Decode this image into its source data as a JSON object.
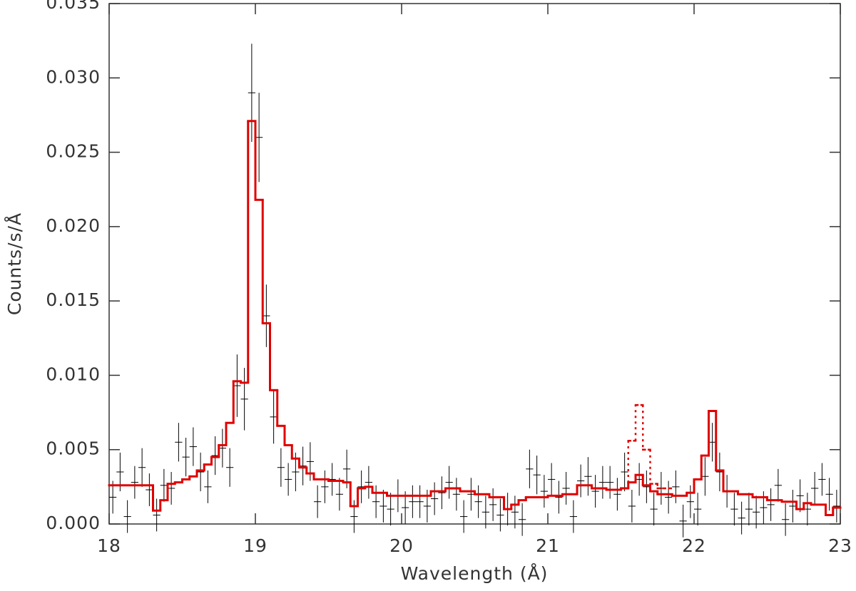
{
  "chart_data": {
    "type": "scatter",
    "xlabel": "Wavelength (Å)",
    "ylabel": "Counts/s/Å",
    "xlim": [
      18,
      23
    ],
    "ylim": [
      0,
      0.035
    ],
    "xticks": [
      18,
      19,
      20,
      21,
      22,
      23
    ],
    "yticks": [
      {
        "value": 0,
        "label": "0.000"
      },
      {
        "value": 0.005,
        "label": "0.005"
      },
      {
        "value": 0.01,
        "label": "0.010"
      },
      {
        "value": 0.015,
        "label": "0.015"
      },
      {
        "value": 0.02,
        "label": "0.020"
      },
      {
        "value": 0.025,
        "label": "0.025"
      },
      {
        "value": 0.03,
        "label": "0.030"
      },
      {
        "value": 0.035,
        "label": "0.035"
      }
    ],
    "series": [
      {
        "type": "errorbar",
        "color": "#000000",
        "xerr": 0.025,
        "x": [
          18.025,
          18.075,
          18.125,
          18.175,
          18.225,
          18.275,
          18.325,
          18.375,
          18.425,
          18.475,
          18.525,
          18.575,
          18.625,
          18.675,
          18.725,
          18.775,
          18.825,
          18.875,
          18.925,
          18.975,
          19.025,
          19.075,
          19.125,
          19.175,
          19.225,
          19.275,
          19.325,
          19.375,
          19.425,
          19.475,
          19.525,
          19.575,
          19.625,
          19.675,
          19.725,
          19.775,
          19.825,
          19.875,
          19.925,
          19.975,
          20.025,
          20.075,
          20.125,
          20.175,
          20.225,
          20.275,
          20.325,
          20.375,
          20.425,
          20.475,
          20.525,
          20.575,
          20.625,
          20.675,
          20.725,
          20.775,
          20.825,
          20.875,
          20.925,
          20.975,
          21.025,
          21.075,
          21.125,
          21.175,
          21.225,
          21.275,
          21.325,
          21.375,
          21.425,
          21.475,
          21.525,
          21.575,
          21.625,
          21.675,
          21.725,
          21.775,
          21.825,
          21.875,
          21.925,
          21.975,
          22.025,
          22.075,
          22.125,
          22.175,
          22.225,
          22.275,
          22.325,
          22.375,
          22.425,
          22.475,
          22.525,
          22.575,
          22.625,
          22.675,
          22.725,
          22.775,
          22.825,
          22.875,
          22.925,
          22.975
        ],
        "values": [
          0.0018,
          0.0035,
          0.0005,
          0.0028,
          0.0038,
          0.0023,
          0.0006,
          0.0026,
          0.0024,
          0.0055,
          0.0045,
          0.0052,
          0.0035,
          0.0025,
          0.0046,
          0.0051,
          0.0038,
          0.0093,
          0.0084,
          0.029,
          0.026,
          0.014,
          0.0072,
          0.0038,
          0.003,
          0.0035,
          0.0039,
          0.0042,
          0.0015,
          0.0025,
          0.003,
          0.002,
          0.0037,
          0.0005,
          0.0025,
          0.0028,
          0.0015,
          0.0012,
          0.001,
          0.0019,
          0.0011,
          0.0015,
          0.0015,
          0.0012,
          0.0017,
          0.0021,
          0.0028,
          0.002,
          0.0005,
          0.002,
          0.0015,
          0.0008,
          0.0013,
          0.0006,
          0.001,
          0.0008,
          0.0003,
          0.0037,
          0.0033,
          0.0022,
          0.003,
          0.0018,
          0.0024,
          0.0005,
          0.0029,
          0.0032,
          0.0022,
          0.0028,
          0.0028,
          0.002,
          0.0035,
          0.0012,
          0.003,
          0.0025,
          0.001,
          0.0024,
          0.0018,
          0.0025,
          0.0002,
          0.0015,
          0.001,
          0.0032,
          0.0055,
          0.0035,
          0.0022,
          0.001,
          0.0004,
          0.001,
          0.0008,
          0.0011,
          0.0013,
          0.0026,
          0.0003,
          0.0012,
          0.0019,
          0.001,
          0.0024,
          0.003,
          0.002,
          0.0012
        ],
        "yerr": [
          0.0011,
          0.0013,
          0.0011,
          0.0011,
          0.0013,
          0.0011,
          0.0011,
          0.0011,
          0.0011,
          0.0013,
          0.0013,
          0.0013,
          0.0013,
          0.0011,
          0.0013,
          0.0013,
          0.0013,
          0.0021,
          0.0021,
          0.0033,
          0.003,
          0.0021,
          0.0018,
          0.0013,
          0.0011,
          0.0013,
          0.0013,
          0.0013,
          0.0011,
          0.0011,
          0.0011,
          0.0011,
          0.0013,
          0.0011,
          0.0011,
          0.0011,
          0.0011,
          0.0011,
          0.0011,
          0.0011,
          0.0011,
          0.0011,
          0.0011,
          0.0011,
          0.0011,
          0.0011,
          0.0011,
          0.0011,
          0.0011,
          0.0011,
          0.0011,
          0.0011,
          0.0011,
          0.0011,
          0.0011,
          0.0011,
          0.0011,
          0.0013,
          0.0013,
          0.0011,
          0.0011,
          0.0011,
          0.0011,
          0.0011,
          0.0011,
          0.0013,
          0.0011,
          0.0011,
          0.0011,
          0.0011,
          0.0013,
          0.0011,
          0.0011,
          0.0011,
          0.0011,
          0.0011,
          0.0011,
          0.0011,
          0.0011,
          0.0011,
          0.0011,
          0.0013,
          0.0013,
          0.0013,
          0.0011,
          0.0011,
          0.0011,
          0.0011,
          0.0011,
          0.0011,
          0.0011,
          0.0011,
          0.0011,
          0.0011,
          0.0011,
          0.0011,
          0.0011,
          0.0011,
          0.0011,
          0.0011
        ]
      },
      {
        "type": "step",
        "color": "#e00000",
        "bins": [
          18,
          18.3,
          18.35,
          18.4,
          18.45,
          18.5,
          18.55,
          18.6,
          18.65,
          18.7,
          18.75,
          18.8,
          18.85,
          18.9,
          18.95,
          19,
          19.05,
          19.1,
          19.15,
          19.2,
          19.25,
          19.3,
          19.35,
          19.4,
          19.5,
          19.6,
          19.65,
          19.7,
          19.75,
          19.8,
          19.9,
          20.2,
          20.3,
          20.4,
          20.5,
          20.6,
          20.7,
          20.75,
          20.8,
          20.85,
          21,
          21.1,
          21.2,
          21.3,
          21.4,
          21.5,
          21.55,
          21.6,
          21.65,
          21.7,
          21.75,
          21.85,
          21.95,
          22,
          22.05,
          22.1,
          22.15,
          22.2,
          22.3,
          22.4,
          22.5,
          22.6,
          22.7,
          22.75,
          22.8,
          22.9,
          22.95,
          23
        ],
        "values": [
          0.0026,
          0.0009,
          0.0016,
          0.0027,
          0.0028,
          0.003,
          0.0032,
          0.0036,
          0.004,
          0.0045,
          0.0053,
          0.0068,
          0.0096,
          0.0095,
          0.0271,
          0.0218,
          0.0135,
          0.009,
          0.0066,
          0.0053,
          0.0044,
          0.0038,
          0.0034,
          0.003,
          0.0029,
          0.0028,
          0.0012,
          0.0024,
          0.0025,
          0.0021,
          0.0019,
          0.0022,
          0.0024,
          0.0022,
          0.002,
          0.0018,
          0.001,
          0.0013,
          0.0016,
          0.0018,
          0.0019,
          0.002,
          0.0026,
          0.0024,
          0.0023,
          0.0024,
          0.0028,
          0.0033,
          0.0026,
          0.0022,
          0.002,
          0.0019,
          0.0021,
          0.003,
          0.0046,
          0.0076,
          0.0036,
          0.0022,
          0.002,
          0.0018,
          0.0016,
          0.0015,
          0.001,
          0.0014,
          0.0013,
          0.0006,
          0.0011
        ]
      },
      {
        "type": "step",
        "color": "#e00000",
        "dashed": true,
        "bins": [
          21.5,
          21.55,
          21.6,
          21.65,
          21.7,
          21.75,
          21.85
        ],
        "values": [
          0.0024,
          0.0056,
          0.008,
          0.005,
          0.0027,
          0.0024
        ]
      }
    ]
  }
}
